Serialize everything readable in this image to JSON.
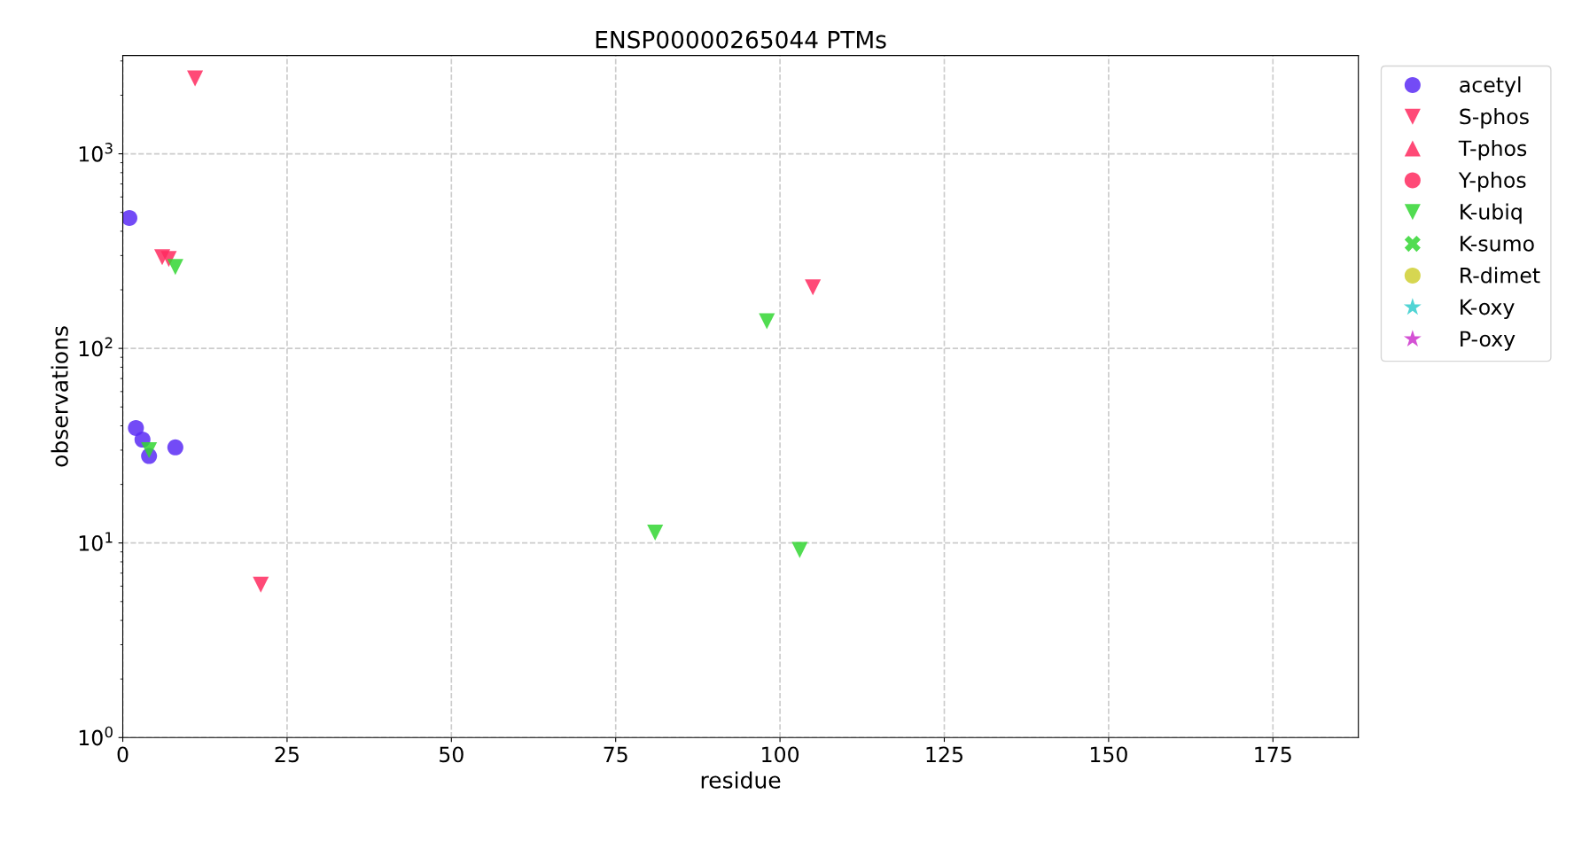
{
  "chart_data": {
    "type": "scatter",
    "title": "ENSP00000265044 PTMs",
    "xlabel": "residue",
    "ylabel": "observations",
    "log": "y",
    "xlim": [
      0,
      188
    ],
    "xticks": [
      0,
      25,
      50,
      75,
      100,
      125,
      150,
      175
    ],
    "ylim": [
      1,
      3200
    ],
    "yticks": [
      {
        "value": 1,
        "label": "10$^{0}$"
      },
      {
        "value": 10,
        "label": "10$^{1}$"
      },
      {
        "value": 100,
        "label": "10$^{2}$"
      },
      {
        "value": 1000,
        "label": "10$^{3}$"
      }
    ],
    "grid": true,
    "legend": "right",
    "series": [
      {
        "name": "acetyl",
        "color": "#5a2cf5",
        "marker": "circle",
        "x": [
          1,
          2,
          3,
          4,
          8
        ],
        "values": [
          468,
          39,
          34,
          28,
          31
        ]
      },
      {
        "name": "S-phos",
        "color": "#ff2a5f",
        "marker": "triangle_down",
        "x": [
          11,
          6,
          7,
          21,
          105
        ],
        "values": [
          2440,
          294,
          288,
          6.1,
          206
        ]
      },
      {
        "name": "T-phos",
        "color": "#ff2a5f",
        "marker": "triangle"
      },
      {
        "name": "Y-phos",
        "color": "#ff2a5f",
        "marker": "circle"
      },
      {
        "name": "K-ubiq",
        "color": "#33d633",
        "marker": "triangle_down",
        "x": [
          8,
          4,
          98,
          81,
          103
        ],
        "values": [
          262,
          30,
          138,
          11.3,
          9.2
        ]
      },
      {
        "name": "K-sumo",
        "color": "#33d633",
        "marker": "cross"
      },
      {
        "name": "R-dimet",
        "color": "#cfcf33",
        "marker": "circle"
      },
      {
        "name": "K-oxy",
        "color": "#33cccc",
        "marker": "star"
      },
      {
        "name": "P-oxy",
        "color": "#cc33cc",
        "marker": "star"
      }
    ]
  }
}
